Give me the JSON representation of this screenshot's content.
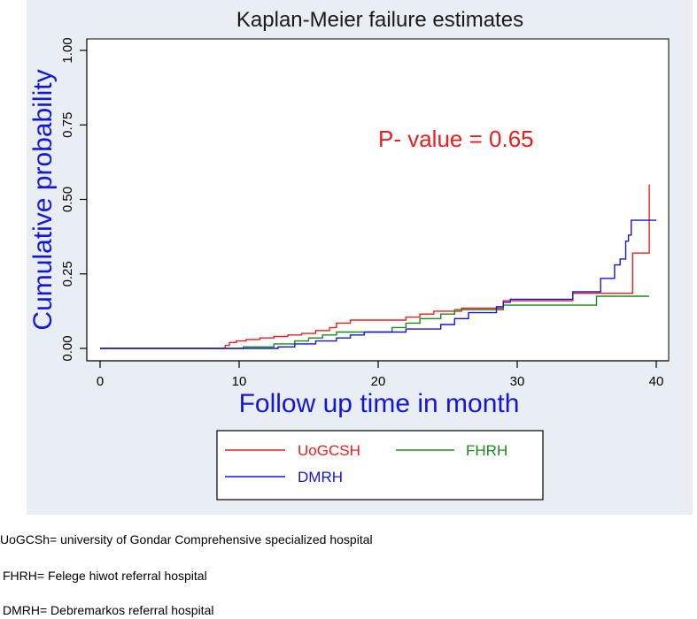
{
  "colors": {
    "ylabel": "#1515d8",
    "xlabel": "#1515d8",
    "annotation": "#ee1c1c",
    "UoGCSH": "#ee1c1c",
    "FHRH": "#1a8a1a",
    "DMRH": "#1515d8"
  },
  "chart_data": {
    "type": "line",
    "step": true,
    "title": "Kaplan-Meier failure estimates",
    "xlabel": "Follow up time in month",
    "ylabel": "Cumulative probability",
    "xlim": [
      0,
      40
    ],
    "ylim": [
      0,
      1
    ],
    "xticks": [
      0,
      10,
      20,
      30,
      40
    ],
    "xtick_labels": [
      "0",
      "10",
      "20",
      "30",
      "40"
    ],
    "yticks": [
      0,
      0.25,
      0.5,
      0.75,
      1
    ],
    "ytick_labels": [
      "0.00",
      "0.25",
      "0.50",
      "0.75",
      "1.00"
    ],
    "grid": false,
    "legend_position": "bottom",
    "annotation": "P- value = 0.65",
    "series": [
      {
        "name": "UoGCSH",
        "color": "#ee1c1c",
        "x": [
          0,
          9.0,
          9.3,
          9.8,
          10.5,
          11.5,
          12.5,
          13.5,
          14.5,
          15.5,
          16.5,
          17.0,
          18.0,
          22.0,
          23.0,
          24.0,
          26.0,
          29.0,
          34.0,
          38.3,
          39.5,
          39.5
        ],
        "y": [
          0,
          0.01,
          0.02,
          0.025,
          0.03,
          0.035,
          0.04,
          0.045,
          0.05,
          0.06,
          0.07,
          0.085,
          0.095,
          0.105,
          0.115,
          0.125,
          0.135,
          0.16,
          0.185,
          0.32,
          0.55,
          0.55
        ]
      },
      {
        "name": "FHRH",
        "color": "#1a8a1a",
        "x": [
          0,
          10.3,
          12.5,
          14.0,
          15.0,
          16.0,
          17.0,
          21.0,
          22.0,
          23.0,
          24.5,
          25.5,
          29.0,
          35.7,
          39.5
        ],
        "y": [
          0,
          0.005,
          0.015,
          0.025,
          0.035,
          0.045,
          0.055,
          0.07,
          0.085,
          0.1,
          0.115,
          0.13,
          0.145,
          0.175,
          0.175
        ]
      },
      {
        "name": "DMRH",
        "color": "#1515d8",
        "x": [
          0,
          12.8,
          14.0,
          15.5,
          17.0,
          18.0,
          19.0,
          22.0,
          24.5,
          25.5,
          26.5,
          28.5,
          29.0,
          29.5,
          34.0,
          36.0,
          37.0,
          37.4,
          37.8,
          38.0,
          38.2,
          38.5,
          40.0
        ],
        "y": [
          0,
          0.005,
          0.015,
          0.025,
          0.035,
          0.045,
          0.055,
          0.065,
          0.08,
          0.1,
          0.12,
          0.14,
          0.155,
          0.165,
          0.19,
          0.235,
          0.28,
          0.3,
          0.36,
          0.38,
          0.43,
          0.43,
          0.43
        ]
      }
    ]
  },
  "footnotes": [
    "UoGCSh= university of Gondar Comprehensive specialized hospital",
    "FHRH= Felege hiwot referral hospital",
    "DMRH= Debremarkos referral hospital"
  ]
}
